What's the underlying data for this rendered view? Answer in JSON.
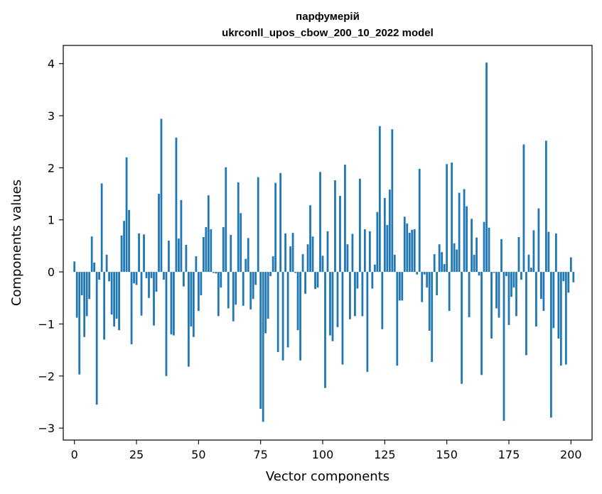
{
  "chart_data": {
    "type": "bar",
    "title": "парфумерій",
    "subtitle": "ukrconll_upos_cbow_200_10_2022 model",
    "xlabel": "Vector components",
    "ylabel": "Components values",
    "xlim": [
      -4.5,
      208.5
    ],
    "ylim": [
      -3.23,
      4.35
    ],
    "xticks": [
      0,
      25,
      50,
      75,
      100,
      125,
      150,
      175,
      200
    ],
    "yticks": [
      -3,
      -2,
      -1,
      0,
      1,
      2,
      3,
      4
    ],
    "xtick_labels": [
      "0",
      "25",
      "50",
      "75",
      "100",
      "125",
      "150",
      "175",
      "200"
    ],
    "ytick_labels": [
      "−3",
      "−2",
      "−1",
      "0",
      "1",
      "2",
      "3",
      "4"
    ],
    "bar_color": "#1f77b4",
    "grid": false,
    "legend": "none",
    "values": [
      0.2,
      -0.88,
      -1.97,
      -0.45,
      -1.25,
      -0.85,
      -0.52,
      0.68,
      0.18,
      -2.55,
      -0.15,
      1.7,
      -1.3,
      0.33,
      -0.18,
      -0.82,
      -1.05,
      -0.9,
      -1.12,
      0.7,
      0.98,
      2.2,
      1.19,
      -1.39,
      -0.22,
      -0.25,
      0.74,
      -0.84,
      0.72,
      -0.12,
      -0.5,
      -0.12,
      -1.03,
      -0.38,
      1.5,
      2.94,
      -0.15,
      -2.0,
      0.6,
      -1.2,
      -1.22,
      2.58,
      0.64,
      1.38,
      -0.28,
      0.52,
      -1.82,
      -1.05,
      -1.25,
      0.3,
      -0.75,
      -0.45,
      0.67,
      0.86,
      1.47,
      0.82,
      -0.02,
      -0.03,
      -0.85,
      -0.3,
      0.86,
      2.01,
      -0.7,
      0.71,
      -0.95,
      -0.63,
      1.72,
      1.13,
      -0.65,
      0.25,
      0.65,
      -0.72,
      -0.52,
      -0.25,
      1.82,
      -2.63,
      -2.88,
      -1.18,
      -0.9,
      -0.08,
      0.3,
      1.71,
      -1.54,
      1.9,
      -1.7,
      0.74,
      -1.45,
      0.49,
      0.75,
      -0.02,
      -1.12,
      -1.7,
      0.34,
      -0.42,
      0.53,
      1.28,
      0.68,
      -0.33,
      -0.3,
      1.92,
      0.31,
      -2.23,
      0.78,
      -1.22,
      -1.33,
      1.76,
      -1.06,
      1.46,
      -1.78,
      2.06,
      0.53,
      -0.91,
      0.73,
      -0.85,
      -0.32,
      1.79,
      -0.85,
      0.82,
      -1.92,
      0.78,
      -0.32,
      0.14,
      1.15,
      2.8,
      -1.1,
      1.42,
      0.9,
      1.58,
      2.74,
      0.33,
      -1.8,
      -0.55,
      -0.55,
      1.06,
      0.93,
      0.75,
      0.81,
      0.82,
      -0.05,
      1.98,
      -0.58,
      -0.05,
      -0.3,
      -1.13,
      -1.73,
      0.34,
      -0.45,
      0.53,
      0.38,
      0.15,
      2.07,
      -0.75,
      2.1,
      0.55,
      0.43,
      1.52,
      -2.15,
      1.59,
      1.26,
      -0.87,
      1.02,
      0.33,
      0.66,
      -0.07,
      -1.98,
      0.96,
      4.02,
      0.85,
      -1.28,
      -0.02,
      -0.7,
      -0.88,
      0.63,
      -2.86,
      -0.08,
      -1.02,
      -0.48,
      -0.3,
      -0.85,
      0.67,
      -0.15,
      2.45,
      -1.6,
      0.33,
      0.08,
      0.8,
      -1.05,
      1.22,
      -0.52,
      -0.75,
      2.52,
      0.77,
      -2.8,
      -1.08,
      0.74,
      -1.28,
      -1.8,
      -0.18,
      -1.78,
      -0.4,
      0.28,
      -0.2
    ]
  }
}
